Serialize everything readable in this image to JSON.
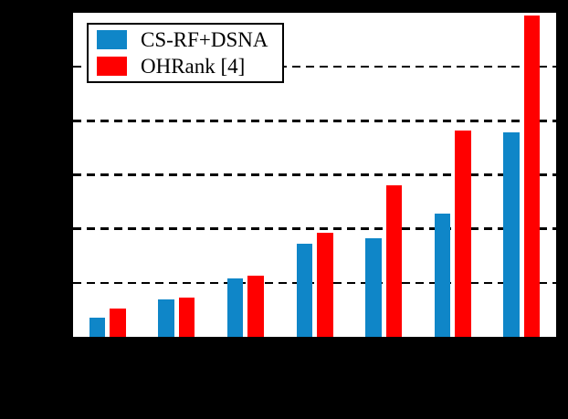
{
  "figure": {
    "background_color": "#000000",
    "plot_background_color": "#ffffff",
    "axis_color": "#000000"
  },
  "legend": {
    "items": [
      {
        "label": "CS-RF+DSNA",
        "color": "#0f86c8"
      },
      {
        "label": "OHRank [4]",
        "color": "#ff0000"
      }
    ]
  },
  "chart_data": {
    "type": "bar",
    "title": "",
    "xlabel": "",
    "ylabel": "",
    "categories": [
      "",
      "",
      "",
      "",
      "",
      "",
      ""
    ],
    "series": [
      {
        "name": "CS-RF+DSNA",
        "color": "#0f86c8",
        "values": [
          0.35,
          0.69,
          1.08,
          1.72,
          1.83,
          2.29,
          3.79
        ]
      },
      {
        "name": "OHRank [4]",
        "color": "#ff0000",
        "values": [
          0.53,
          0.73,
          1.13,
          1.93,
          2.8,
          3.82,
          5.95
        ]
      }
    ],
    "ylim": [
      0,
      6
    ],
    "gridlines": {
      "axis": "y",
      "values": [
        1,
        2,
        3,
        4,
        5
      ],
      "style": "dashed",
      "color": "#000000"
    },
    "legend_position": "top-left",
    "axis_tick_labels_visible": false
  }
}
